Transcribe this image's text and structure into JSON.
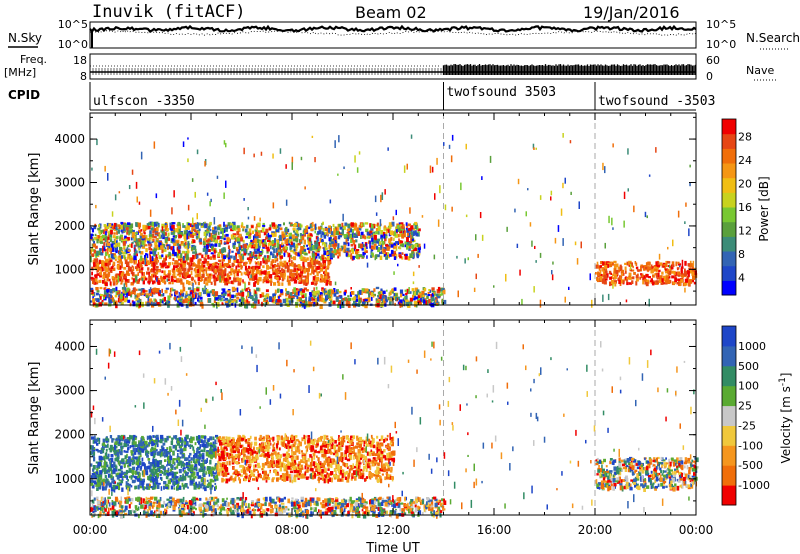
{
  "header": {
    "station": "Inuvik (fitACF)",
    "beam": "Beam 02",
    "date": "19/Jan/2016"
  },
  "noise_panel": {
    "left_label": "N.Sky",
    "right_label": "N.Search",
    "left_ticks": [
      "10^5",
      "10^0"
    ],
    "right_ticks": [
      "10^5",
      "10^0"
    ]
  },
  "freq_panel": {
    "left_label_1": "Freq.",
    "left_label_2": "[MHz]",
    "right_label": "Nave",
    "left_ticks": [
      "18",
      "8"
    ],
    "right_ticks": [
      "60",
      "0"
    ]
  },
  "cpid": {
    "label": "CPID",
    "segments": [
      {
        "name": "ulfscon -3350",
        "start_hour": 0
      },
      {
        "name": "twofsound 3503",
        "start_hour": 14
      },
      {
        "name": "twofsound -3503",
        "start_hour": 20
      }
    ]
  },
  "chart_data": [
    {
      "type": "heatmap",
      "parameter": "power",
      "ylabel": "Slant Range [km]",
      "ylim": [
        180,
        4600
      ],
      "yticks": [
        "1000",
        "2000",
        "3000",
        "4000"
      ],
      "xlim_hours": [
        0,
        24
      ],
      "colorbar": {
        "label": "Power [dB]",
        "ticks": [
          "4",
          "8",
          "12",
          "16",
          "20",
          "24",
          "28"
        ],
        "colors": [
          "#0000ff",
          "#1e46c8",
          "#3264b4",
          "#3c8c78",
          "#5aa03c",
          "#78c832",
          "#c8d21e",
          "#f0be14",
          "#f59614",
          "#f06e0a",
          "#e64614",
          "#f00000"
        ]
      },
      "features": [
        {
          "hours": [
            0,
            9.5
          ],
          "range_km": [
            700,
            1300
          ],
          "level": "high"
        },
        {
          "hours": [
            0,
            13
          ],
          "range_km": [
            1300,
            2100
          ],
          "level": "mixed"
        },
        {
          "hours": [
            0,
            14
          ],
          "range_km": [
            200,
            600
          ],
          "level": "mixed"
        },
        {
          "hours": [
            20,
            24
          ],
          "range_km": [
            700,
            1200
          ],
          "level": "high"
        }
      ]
    },
    {
      "type": "heatmap",
      "parameter": "velocity",
      "ylabel": "Slant Range [km]",
      "ylim": [
        180,
        4600
      ],
      "yticks": [
        "1000",
        "2000",
        "3000",
        "4000"
      ],
      "xlim_hours": [
        0,
        24
      ],
      "colorbar": {
        "label": "Velocity [m s^-1]",
        "ticks": [
          "1000",
          "500",
          "100",
          "25",
          "-25",
          "-100",
          "-500",
          "-1000"
        ],
        "colors": [
          "#1e46c8",
          "#3264b4",
          "#328c64",
          "#5aaa32",
          "#c8c8c8",
          "#f0c83c",
          "#f5961e",
          "#f06e0a",
          "#f00000"
        ]
      },
      "features": [
        {
          "hours": [
            0,
            5
          ],
          "range_km": [
            800,
            2000
          ],
          "level": "away"
        },
        {
          "hours": [
            5,
            12
          ],
          "range_km": [
            1000,
            2000
          ],
          "level": "toward"
        },
        {
          "hours": [
            0,
            14
          ],
          "range_km": [
            200,
            600
          ],
          "level": "mixed"
        },
        {
          "hours": [
            20,
            24
          ],
          "range_km": [
            800,
            1500
          ],
          "level": "mixed"
        }
      ]
    }
  ],
  "xaxis": {
    "label": "Time UT",
    "ticks": [
      "00:00",
      "04:00",
      "08:00",
      "12:00",
      "16:00",
      "20:00",
      "00:00"
    ]
  }
}
